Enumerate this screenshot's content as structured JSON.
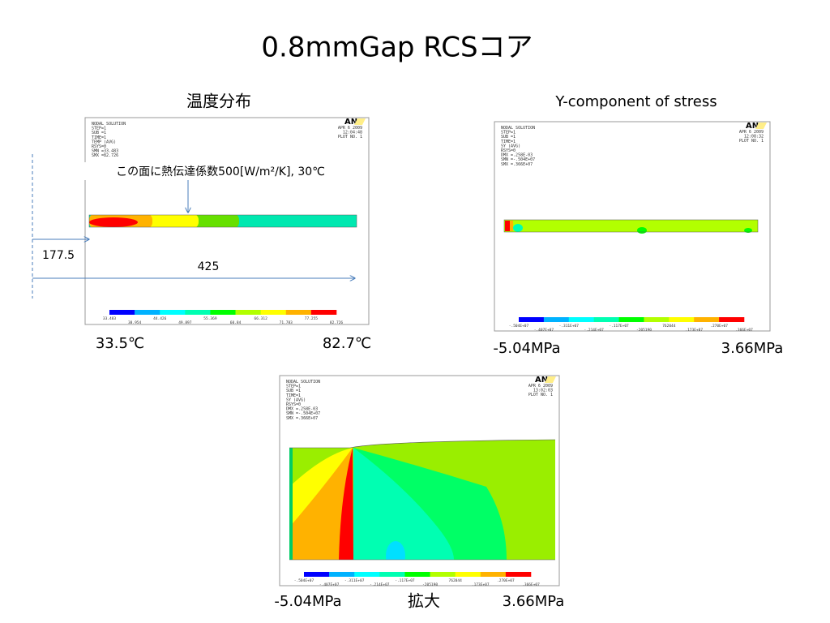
{
  "title": "0.8mmGap RCSコア",
  "panels": [
    {
      "heading": "温度分布",
      "ansys": {
        "lines": [
          "NODAL SOLUTION",
          "STEP=1",
          "SUB =1",
          "TIME=1",
          "TEMP     (AVG)",
          "RSYS=0",
          "SMN =33.483",
          "SMX =82.726"
        ],
        "logo": "AN",
        "date": "APR  6 2009",
        "time": "12:04:48",
        "plot": "PLOT NO.   1",
        "legend": [
          "33.483",
          "38.954",
          "44.426",
          "49.897",
          "55.369",
          "60.84",
          "66.312",
          "71.783",
          "77.255",
          "82.726"
        ]
      },
      "min_label": "33.5℃",
      "max_label": "82.7℃"
    },
    {
      "heading": "Y-component of stress",
      "ansys": {
        "lines": [
          "NODAL SOLUTION",
          "STEP=1",
          "SUB =1",
          "TIME=1",
          "SY       (AVG)",
          "RSYS=0",
          "DMX =.258E-03",
          "SMN =-.504E+07",
          "SMX =.366E+07"
        ],
        "logo": "AN",
        "date": "APR  6 2009",
        "time": "12:08:32",
        "plot": "PLOT NO.   1",
        "legend": [
          "-.504E+07",
          "-.407E+07",
          "-.311E+07",
          "-.214E+07",
          "-.117E+07",
          "-205190",
          "762044",
          ".173E+07",
          ".270E+07",
          ".366E+07"
        ]
      },
      "min_label": "-5.04MPa",
      "max_label": "3.66MPa"
    },
    {
      "heading": "拡大",
      "ansys": {
        "lines": [
          "NODAL SOLUTION",
          "STEP=1",
          "SUB =1",
          "TIME=1",
          "SY       (AVG)",
          "RSYS=0",
          "DMX =.258E-03",
          "SMN =-.504E+07",
          "SMX =.366E+07"
        ],
        "logo": "AN",
        "date": "APR  6 2009",
        "time": "13:02:03",
        "plot": "PLOT NO.   1",
        "legend": [
          "-.504E+07",
          "-.407E+07",
          "-.311E+07",
          "-.214E+07",
          "-.117E+07",
          "-205190",
          "762044",
          ".173E+07",
          ".270E+07",
          ".366E+07"
        ]
      },
      "min_label": "-5.04MPa",
      "max_label": "3.66MPa"
    }
  ],
  "annotations": {
    "surface": "この面に熱伝達係数500[W/m²/K], 30℃",
    "dim1": "177.5",
    "dim2": "425"
  }
}
